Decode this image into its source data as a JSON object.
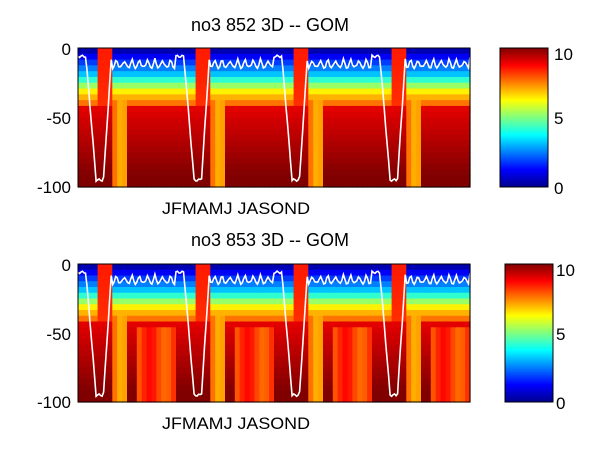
{
  "chart_data": [
    {
      "type": "heatmap",
      "title": "no3  852 3D   -- GOM",
      "xlabel": "JFMAMJ JASOND",
      "ylabel": "",
      "ylim": [
        -100,
        0
      ],
      "yticks": [
        0,
        -50,
        -100
      ],
      "colorbar": {
        "range": [
          0,
          10
        ],
        "ticks": [
          0,
          5,
          10
        ],
        "colormap": "jet"
      },
      "overlay_line_color": "#ffffff"
    },
    {
      "type": "heatmap",
      "title": "no3  853 3D   -- GOM",
      "xlabel": "JFMAMJ JASOND",
      "ylabel": "",
      "ylim": [
        -100,
        0
      ],
      "yticks": [
        0,
        -50,
        -100
      ],
      "colorbar": {
        "range": [
          0,
          10
        ],
        "ticks": [
          0,
          5,
          10
        ],
        "colormap": "jet"
      },
      "overlay_line_color": "#ffffff"
    }
  ]
}
